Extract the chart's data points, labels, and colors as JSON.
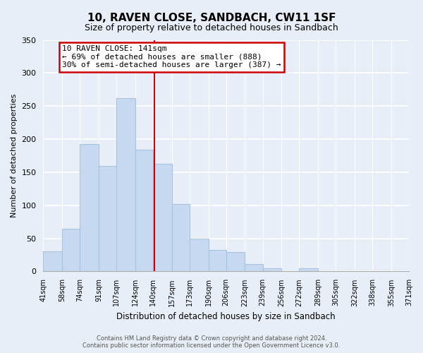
{
  "title": "10, RAVEN CLOSE, SANDBACH, CW11 1SF",
  "subtitle": "Size of property relative to detached houses in Sandbach",
  "xlabel": "Distribution of detached houses by size in Sandbach",
  "ylabel": "Number of detached properties",
  "bar_edges": [
    41,
    58,
    74,
    91,
    107,
    124,
    140,
    157,
    173,
    190,
    206,
    223,
    239,
    256,
    272,
    289,
    305,
    322,
    338,
    355,
    371
  ],
  "bar_heights": [
    30,
    65,
    193,
    160,
    262,
    184,
    163,
    102,
    50,
    32,
    29,
    11,
    5,
    0,
    5,
    0,
    0,
    0,
    0,
    1
  ],
  "bar_color": "#c6d9f0",
  "bar_edgecolor": "#a8c4e0",
  "vline_x": 141,
  "vline_color": "#cc0000",
  "annotation_title": "10 RAVEN CLOSE: 141sqm",
  "annotation_line1": "← 69% of detached houses are smaller (888)",
  "annotation_line2": "30% of semi-detached houses are larger (387) →",
  "annotation_box_facecolor": "#ffffff",
  "annotation_box_edgecolor": "#cc0000",
  "ylim": [
    0,
    350
  ],
  "yticks": [
    0,
    50,
    100,
    150,
    200,
    250,
    300,
    350
  ],
  "tick_labels": [
    "41sqm",
    "58sqm",
    "74sqm",
    "91sqm",
    "107sqm",
    "124sqm",
    "140sqm",
    "157sqm",
    "173sqm",
    "190sqm",
    "206sqm",
    "223sqm",
    "239sqm",
    "256sqm",
    "272sqm",
    "289sqm",
    "305sqm",
    "322sqm",
    "338sqm",
    "355sqm",
    "371sqm"
  ],
  "footer1": "Contains HM Land Registry data © Crown copyright and database right 2024.",
  "footer2": "Contains public sector information licensed under the Open Government Licence v3.0.",
  "background_color": "#e8eef8",
  "plot_bg_color": "#e8eef8",
  "grid_color": "#ffffff",
  "title_fontsize": 11,
  "subtitle_fontsize": 9,
  "ylabel_fontsize": 8,
  "xlabel_fontsize": 8.5,
  "tick_fontsize": 7,
  "annot_fontsize": 8,
  "footer_fontsize": 6
}
